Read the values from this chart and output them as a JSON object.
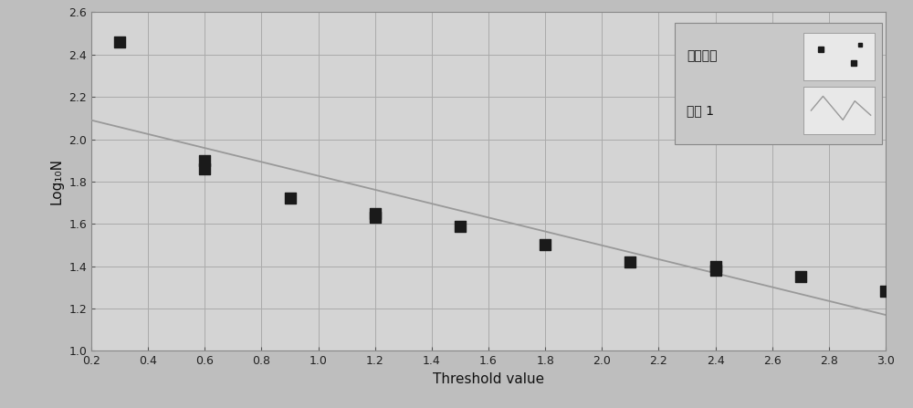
{
  "scatter_x": [
    0.3,
    0.6,
    0.6,
    0.9,
    1.2,
    1.2,
    1.5,
    1.8,
    2.1,
    2.4,
    2.4,
    2.7,
    3.0
  ],
  "scatter_y": [
    2.46,
    1.9,
    1.86,
    1.72,
    1.65,
    1.63,
    1.59,
    1.5,
    1.42,
    1.4,
    1.38,
    1.35,
    1.28
  ],
  "line_x": [
    0.2,
    3.0
  ],
  "line_y": [
    2.09,
    1.17
  ],
  "xlabel": "Threshold value",
  "ylabel": "Log₁₀N",
  "xlim": [
    0.2,
    3.0
  ],
  "ylim": [
    1.0,
    2.6
  ],
  "xticks": [
    0.2,
    0.4,
    0.6,
    0.8,
    1.0,
    1.2,
    1.4,
    1.6,
    1.8,
    2.0,
    2.2,
    2.4,
    2.6,
    2.8,
    3.0
  ],
  "yticks": [
    1.0,
    1.2,
    1.4,
    1.6,
    1.8,
    2.0,
    2.2,
    2.4,
    2.6
  ],
  "legend_label_scatter": "原始数据",
  "legend_label_line": "曲线 1",
  "bg_color": "#bebebe",
  "plot_bg_color": "#d4d4d4",
  "grid_color": "#aaaaaa",
  "scatter_color": "#1a1a1a",
  "line_color": "#999999",
  "marker_size": 8,
  "line_width": 1.3,
  "legend_bg_color": "#c8c8c8",
  "legend_icon_bg": "#e8e8e8"
}
